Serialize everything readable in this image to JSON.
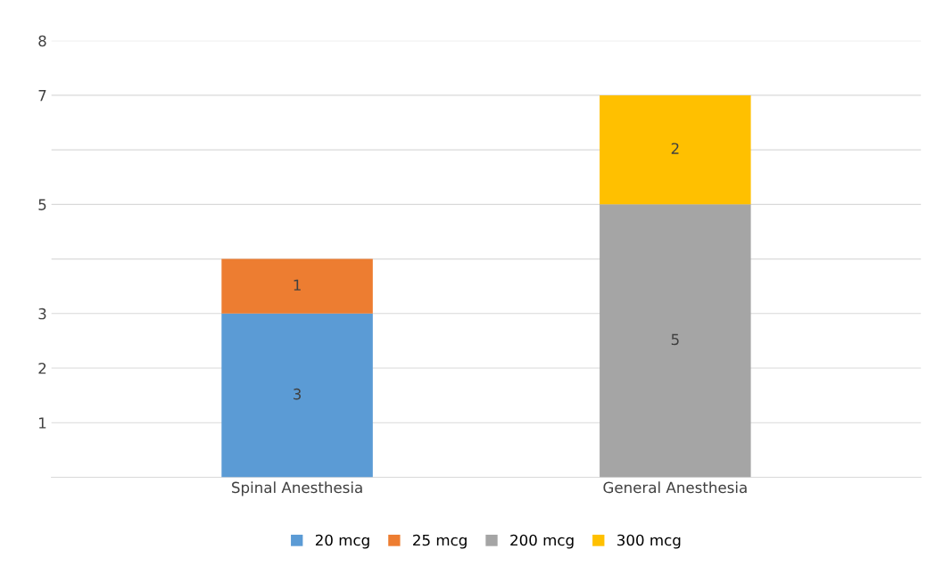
{
  "chart_data": {
    "type": "bar",
    "stacked": true,
    "categories": [
      "Spinal Anesthesia",
      "General Anesthesia"
    ],
    "series": [
      {
        "name": "20 mcg",
        "color": "#5b9bd5",
        "values": [
          3,
          null
        ]
      },
      {
        "name": "25 mcg",
        "color": "#ed7d31",
        "values": [
          1,
          null
        ]
      },
      {
        "name": "200 mcg",
        "color": "#a5a5a5",
        "values": [
          null,
          5
        ]
      },
      {
        "name": "300 mcg",
        "color": "#ffc000",
        "values": [
          null,
          2
        ]
      }
    ],
    "ylim": [
      0,
      8
    ],
    "yticks": [
      {
        "value": 0,
        "label": null
      },
      1,
      2,
      3,
      {
        "value": 4,
        "label": null
      },
      5,
      {
        "value": 6,
        "label": null
      },
      7,
      8
    ],
    "grid": "y",
    "legend": "bottom",
    "data_labels": true
  }
}
